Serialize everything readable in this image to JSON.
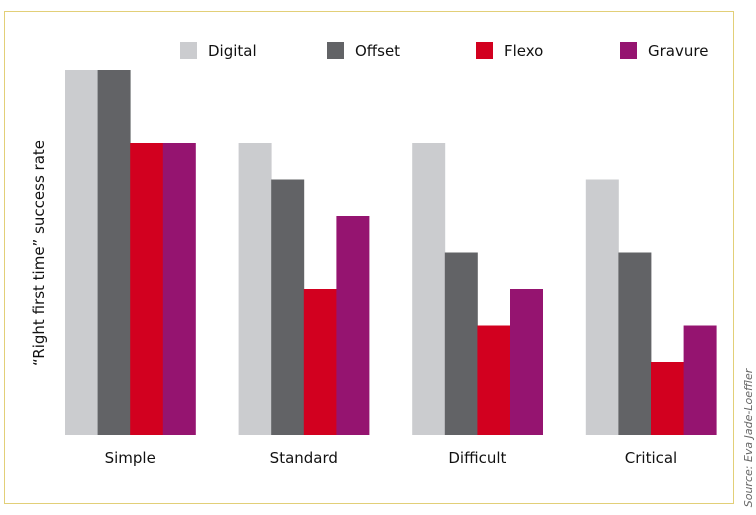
{
  "chart_data": {
    "type": "bar",
    "title": "",
    "xlabel": "",
    "ylabel": "“Right first time” success rate",
    "ylim": [
      0,
      100
    ],
    "grid": false,
    "legend_position": "top",
    "categories": [
      "Simple",
      "Standard",
      "Difficult",
      "Critical"
    ],
    "series": [
      {
        "name": "Digital",
        "color": "#cbcccf",
        "values": [
          100,
          80,
          80,
          70
        ]
      },
      {
        "name": "Offset",
        "color": "#626366",
        "values": [
          100,
          70,
          50,
          50
        ]
      },
      {
        "name": "Flexo",
        "color": "#d2001f",
        "values": [
          80,
          40,
          30,
          20
        ]
      },
      {
        "name": "Gravure",
        "color": "#951470",
        "values": [
          80,
          60,
          40,
          30
        ]
      }
    ],
    "source": "Source: Eva Jade-Loeffler"
  }
}
